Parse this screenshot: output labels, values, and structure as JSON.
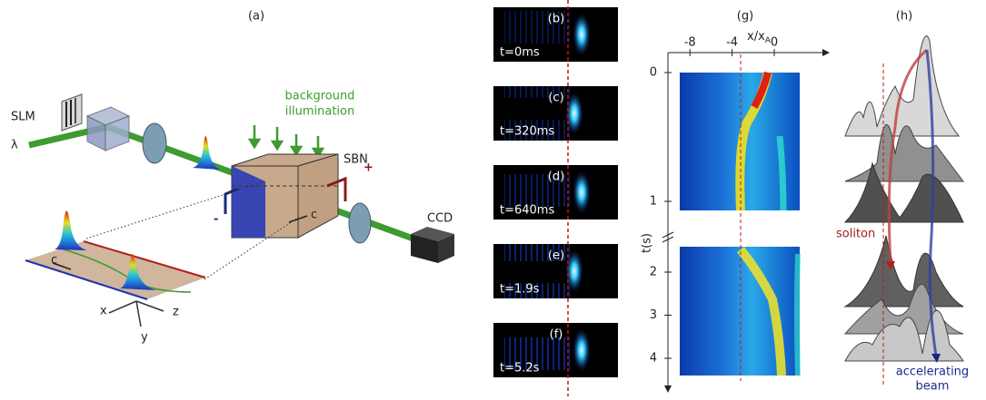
{
  "panel_a": {
    "label": "(a)",
    "slm": "SLM",
    "lambda": "λ",
    "illumination": [
      "background",
      "illumination"
    ],
    "crystal": "SBN",
    "plus": "+",
    "minus": "-",
    "c_axis": "c",
    "camera": "CCD",
    "plane_c": "c",
    "axis_x": "x",
    "axis_z": "z",
    "axis_y": "y"
  },
  "frames": [
    {
      "label": "(b)",
      "time": "t=0ms"
    },
    {
      "label": "(c)",
      "time": "t=320ms"
    },
    {
      "label": "(d)",
      "time": "t=640ms"
    },
    {
      "label": "(e)",
      "time": "t=1.9s"
    },
    {
      "label": "(f)",
      "time": "t=5.2s"
    }
  ],
  "panel_g": {
    "label": "(g)",
    "xlabel": "x/x",
    "xlabel_sub": "A",
    "ylabel": "t(s)",
    "xticks": [
      -8,
      -4,
      0
    ],
    "yticks": [
      0,
      1,
      2,
      3,
      4
    ]
  },
  "panel_h": {
    "label": "(h)",
    "soliton": "soliton",
    "accelerating": [
      "accelerating",
      "beam"
    ]
  }
}
